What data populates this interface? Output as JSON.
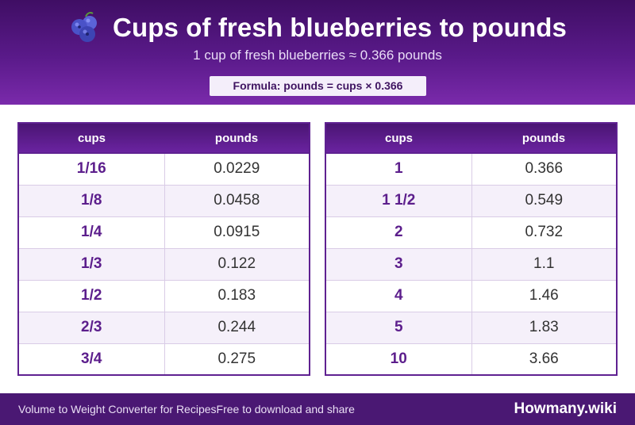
{
  "header": {
    "icon": "blueberries-icon",
    "title": "Cups of fresh blueberries to pounds",
    "subtitle": "1 cup of fresh blueberries ≈ 0.366 pounds",
    "formula": "Formula: pounds = cups × 0.366"
  },
  "tables": {
    "left": {
      "headers": [
        "cups",
        "pounds"
      ],
      "rows": [
        [
          "1/16",
          "0.0229"
        ],
        [
          "1/8",
          "0.0458"
        ],
        [
          "1/4",
          "0.0915"
        ],
        [
          "1/3",
          "0.122"
        ],
        [
          "1/2",
          "0.183"
        ],
        [
          "2/3",
          "0.244"
        ],
        [
          "3/4",
          "0.275"
        ]
      ]
    },
    "right": {
      "headers": [
        "cups",
        "pounds"
      ],
      "rows": [
        [
          "1",
          "0.366"
        ],
        [
          "1 1/2",
          "0.549"
        ],
        [
          "2",
          "0.732"
        ],
        [
          "3",
          "1.1"
        ],
        [
          "4",
          "1.46"
        ],
        [
          "5",
          "1.83"
        ],
        [
          "10",
          "3.66"
        ]
      ]
    }
  },
  "footer": {
    "converter_name": "Volume to Weight Converter for Recipes",
    "tagline": "Free to download and share",
    "brand": "Howmany.wiki"
  },
  "colors": {
    "header_dark": "#3f0e64",
    "header_light": "#7a2aab",
    "accent_text": "#5c1e8c",
    "row_alt": "#f5f0fa",
    "footer": "#4a1873"
  }
}
